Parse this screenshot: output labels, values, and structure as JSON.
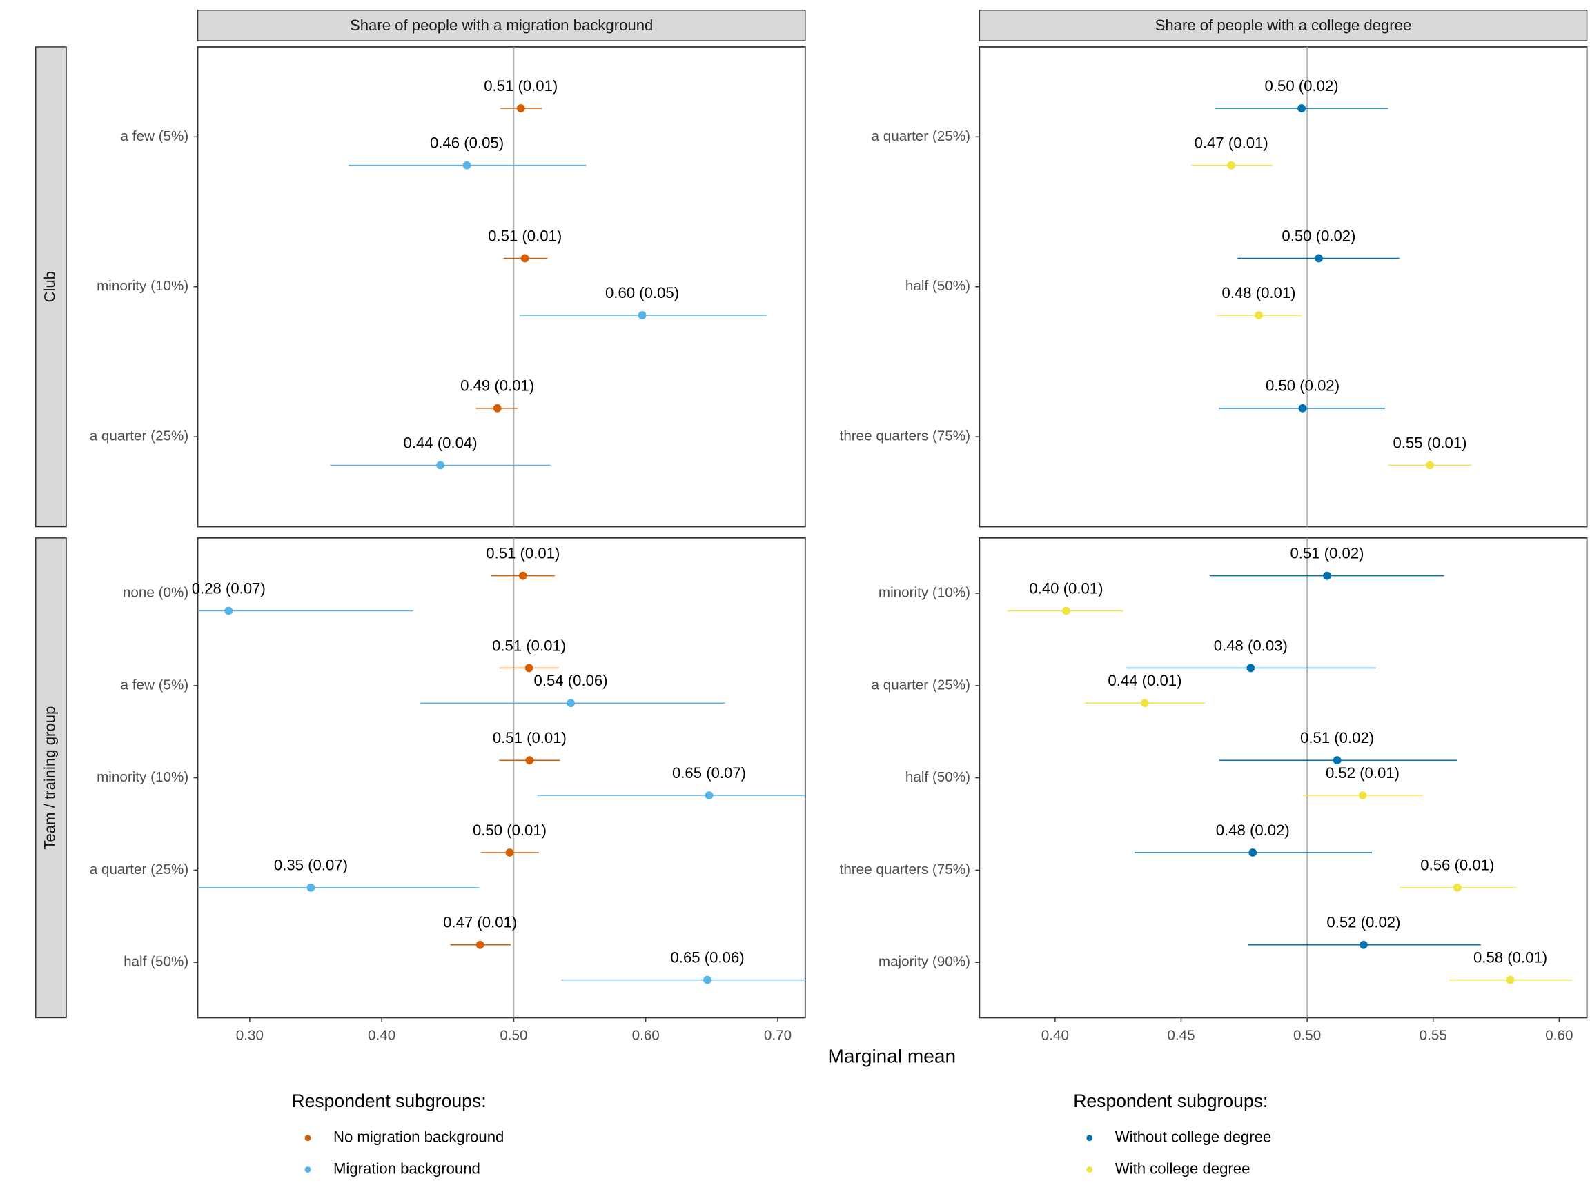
{
  "facets": {
    "column_strips": [
      "Share of people with a migration background",
      "Share of people with a college degree"
    ],
    "row_strips": [
      "Club",
      "Team / training group"
    ],
    "x_label": "Marginal mean"
  },
  "chart_data": [
    {
      "type": "dot",
      "categories": [
        "a few (5%)",
        "minority (10%)",
        "a quarter (25%)"
      ],
      "xlim": [
        0.2606,
        0.7208
      ],
      "ref_line": 0.5,
      "series": [
        {
          "color": "#D55E00",
          "values": [
            0.5054,
            0.5085,
            0.4876
          ],
          "low": [
            0.49,
            0.4923,
            0.4714
          ],
          "high": [
            0.5216,
            0.5255,
            0.503
          ],
          "value_labels": [
            "0.51 (0.01)",
            "0.51 (0.01)",
            "0.49 (0.01)"
          ]
        },
        {
          "color": "#56B4E9",
          "values": [
            0.4645,
            0.5973,
            0.4444
          ],
          "low": [
            0.3749,
            0.5046,
            0.361
          ],
          "high": [
            0.5548,
            0.6915,
            0.5278
          ],
          "value_labels": [
            "0.46 (0.05)",
            "0.60 (0.05)",
            "0.44 (0.04)"
          ]
        }
      ]
    },
    {
      "type": "dot",
      "categories": [
        "a quarter (25%)",
        "half (50%)",
        "three quarters (75%)"
      ],
      "xlim": [
        0.37,
        0.611
      ],
      "ref_line": 0.5,
      "series": [
        {
          "color": "#0072B2",
          "values": [
            0.4978,
            0.5046,
            0.4982
          ],
          "low": [
            0.4634,
            0.4723,
            0.465
          ],
          "high": [
            0.5321,
            0.5366,
            0.5309
          ],
          "value_labels": [
            "0.50 (0.02)",
            "0.50 (0.02)",
            "0.50 (0.02)"
          ]
        },
        {
          "color": "#F0E442",
          "values": [
            0.4699,
            0.4808,
            0.5487
          ],
          "low": [
            0.4541,
            0.4642,
            0.5321
          ],
          "high": [
            0.4861,
            0.4978,
            0.5653
          ],
          "value_labels": [
            "0.47 (0.01)",
            "0.48 (0.01)",
            "0.55 (0.01)"
          ]
        }
      ]
    },
    {
      "type": "dot",
      "categories": [
        "none (0%)",
        "a few (5%)",
        "minority (10%)",
        "a quarter (25%)",
        "half (50%)"
      ],
      "xlim": [
        0.2606,
        0.7208
      ],
      "ref_line": 0.5,
      "xticks": [
        {
          "value": 0.3,
          "label": "0.30"
        },
        {
          "value": 0.4,
          "label": "0.40"
        },
        {
          "value": 0.5,
          "label": "0.50"
        },
        {
          "value": 0.6,
          "label": "0.60"
        },
        {
          "value": 0.7,
          "label": "0.70"
        }
      ],
      "legend_title": "Respondent subgroups:",
      "series": [
        {
          "name": "No migration background",
          "color": "#D55E00",
          "values": [
            0.507,
            0.5116,
            0.512,
            0.4969,
            0.4745
          ],
          "low": [
            0.483,
            0.489,
            0.489,
            0.475,
            0.452
          ],
          "high": [
            0.531,
            0.534,
            0.535,
            0.519,
            0.4977
          ],
          "value_labels": [
            "0.51 (0.01)",
            "0.51 (0.01)",
            "0.51 (0.01)",
            "0.50 (0.01)",
            "0.47 (0.01)"
          ]
        },
        {
          "name": "Migration background",
          "color": "#56B4E9",
          "values": [
            0.284,
            0.5432,
            0.648,
            0.3463,
            0.6467
          ],
          "low": [
            0.147,
            0.429,
            0.518,
            0.2,
            0.536
          ],
          "high": [
            0.4236,
            0.66,
            0.78,
            0.4737,
            0.76
          ],
          "value_labels": [
            "0.28 (0.07)",
            "0.54 (0.06)",
            "0.65 (0.07)",
            "0.35 (0.07)",
            "0.65 (0.06)"
          ]
        }
      ]
    },
    {
      "type": "dot",
      "categories": [
        "minority (10%)",
        "a quarter (25%)",
        "half (50%)",
        "three quarters (75%)",
        "majority (90%)"
      ],
      "xlim": [
        0.37,
        0.611
      ],
      "ref_line": 0.5,
      "xticks": [
        {
          "value": 0.4,
          "label": "0.40"
        },
        {
          "value": 0.45,
          "label": "0.45"
        },
        {
          "value": 0.5,
          "label": "0.50"
        },
        {
          "value": 0.55,
          "label": "0.55"
        },
        {
          "value": 0.6,
          "label": "0.60"
        }
      ],
      "legend_title": "Respondent subgroups:",
      "series": [
        {
          "name": "Without college degree",
          "color": "#0072B2",
          "values": [
            0.5079,
            0.4776,
            0.5119,
            0.4784,
            0.5224
          ],
          "low": [
            0.4614,
            0.4283,
            0.4651,
            0.4315,
            0.4764
          ],
          "high": [
            0.5543,
            0.5273,
            0.5596,
            0.5257,
            0.5689
          ],
          "value_labels": [
            "0.51 (0.02)",
            "0.48 (0.03)",
            "0.51 (0.02)",
            "0.48 (0.02)",
            "0.52 (0.02)"
          ]
        },
        {
          "name": "With college degree",
          "color": "#F0E442",
          "values": [
            0.4044,
            0.4356,
            0.522,
            0.5596,
            0.5806
          ],
          "low": [
            0.381,
            0.4117,
            0.4982,
            0.5366,
            0.5564
          ],
          "high": [
            0.4271,
            0.4594,
            0.5459,
            0.583,
            0.6053
          ],
          "value_labels": [
            "0.40 (0.01)",
            "0.44 (0.01)",
            "0.52 (0.01)",
            "0.56 (0.01)",
            "0.58 (0.01)"
          ]
        }
      ]
    }
  ]
}
